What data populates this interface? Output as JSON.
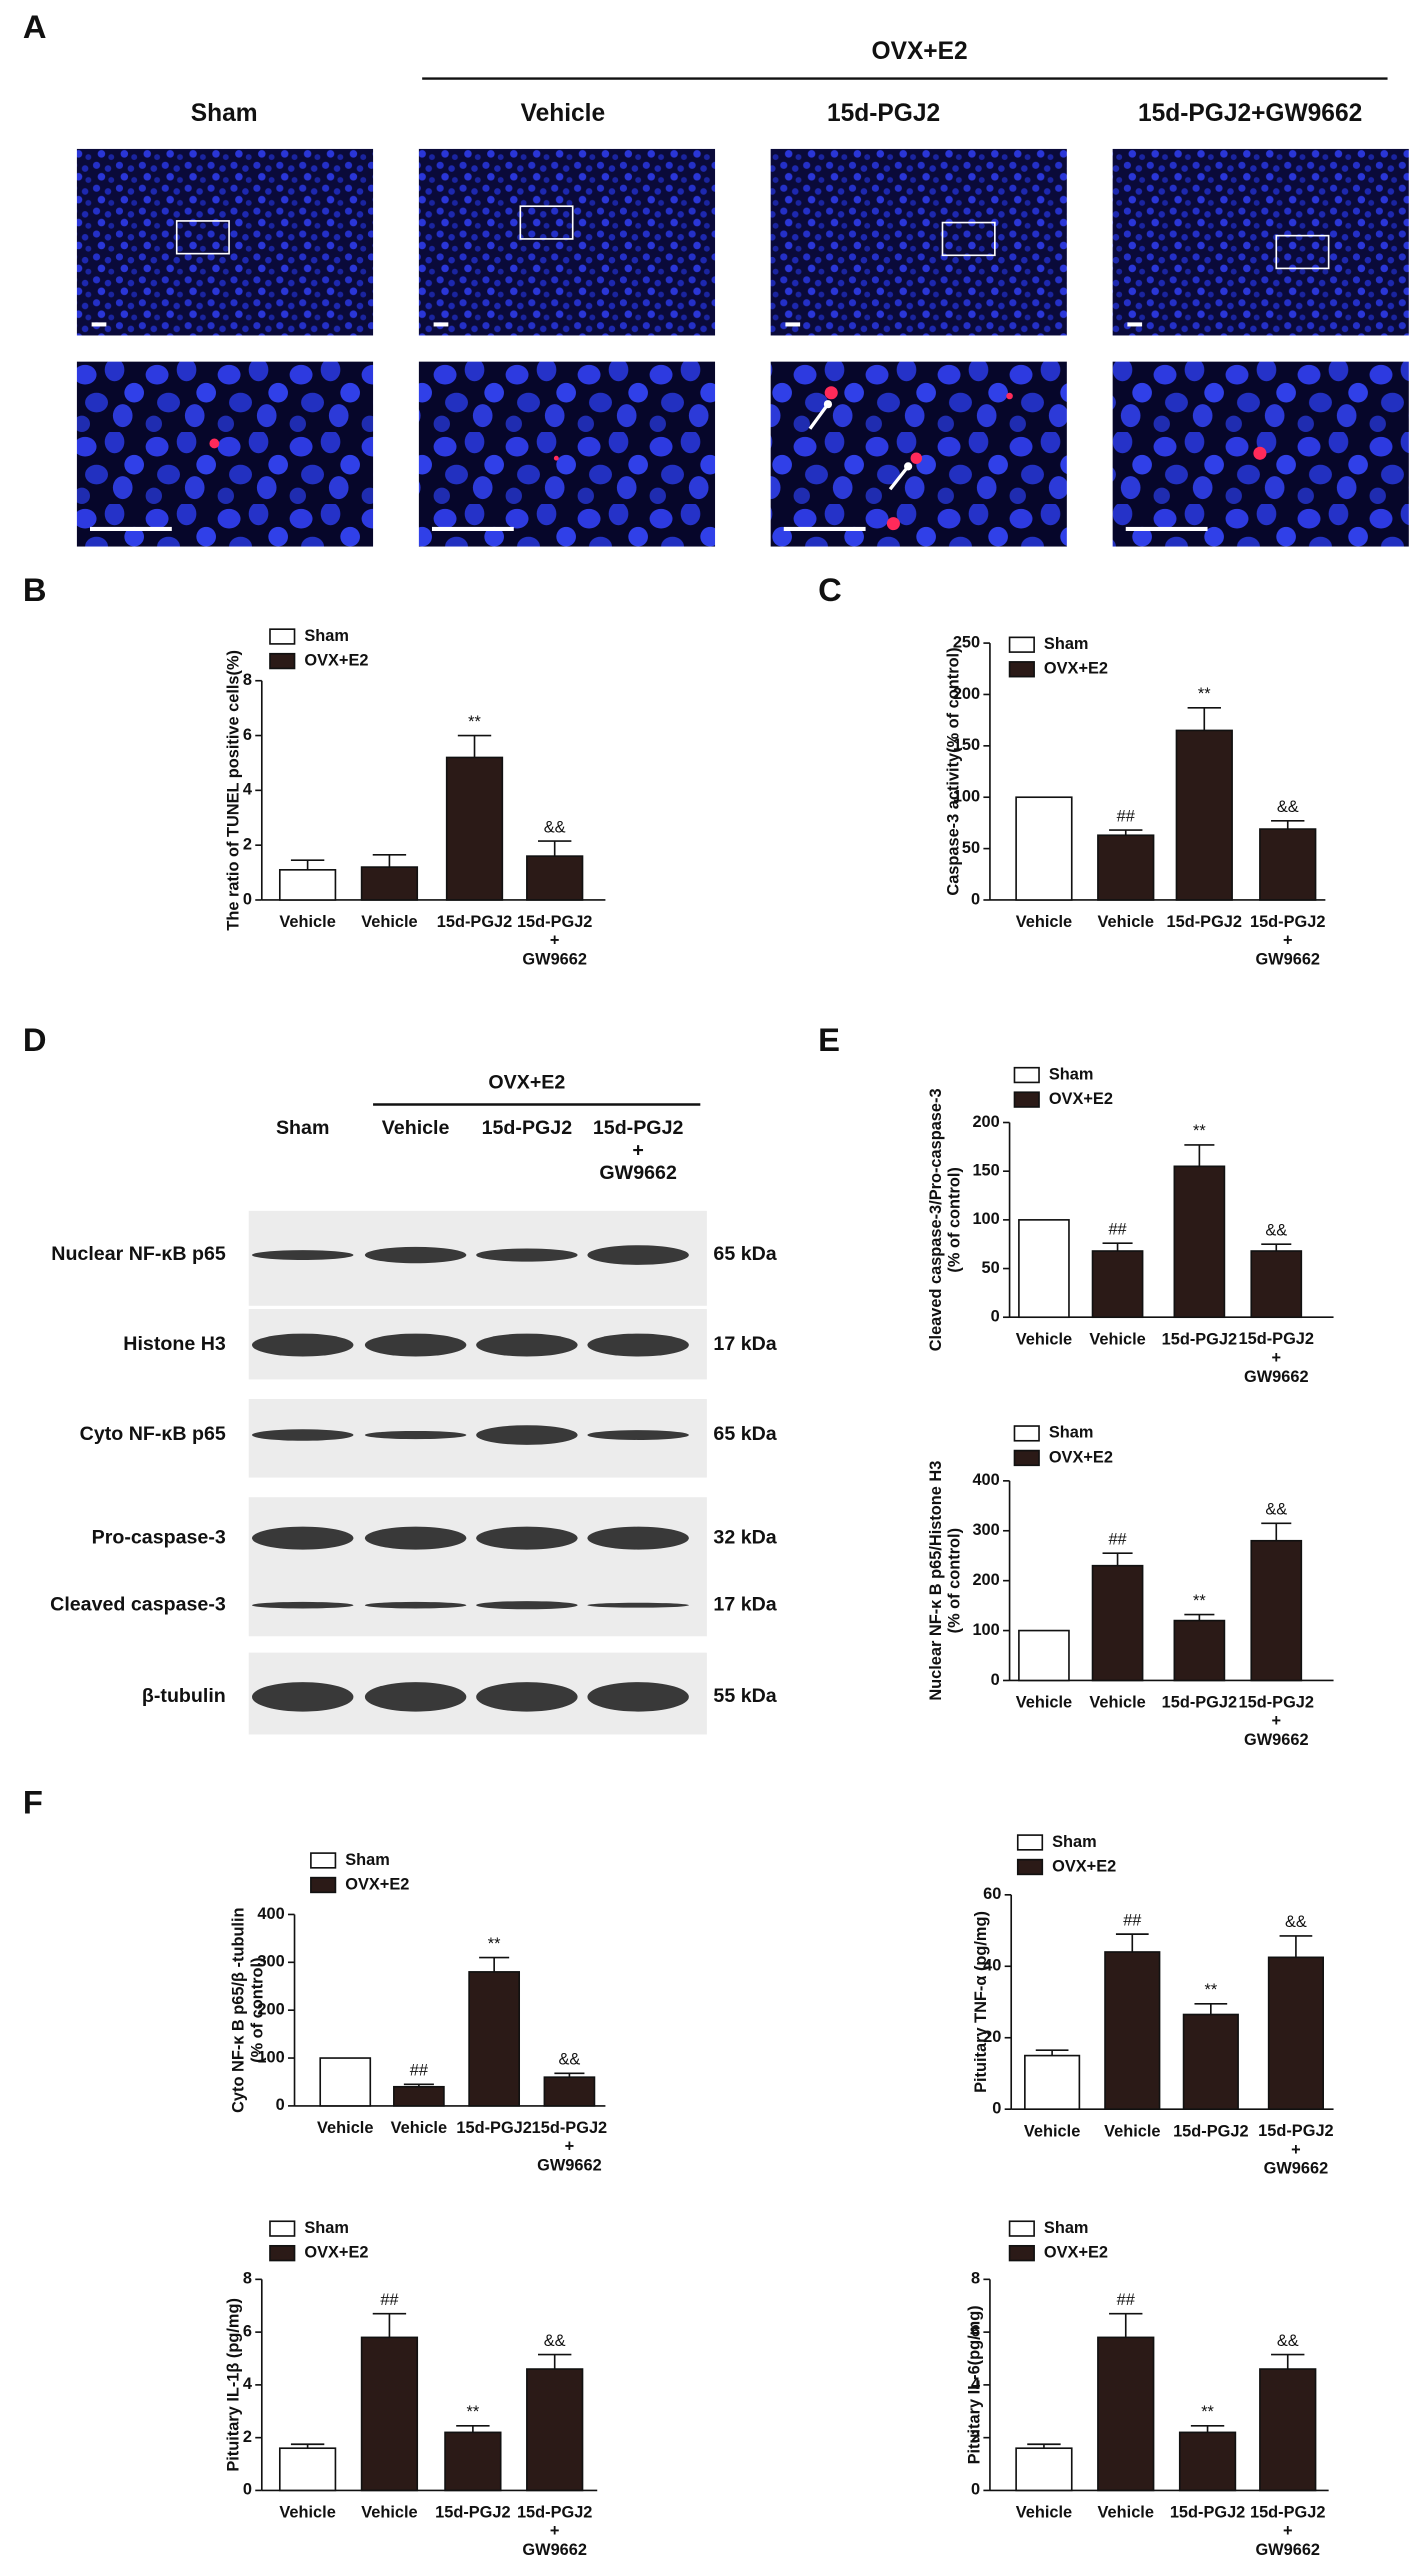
{
  "panels": [
    "A",
    "B",
    "C",
    "D",
    "E",
    "F"
  ],
  "microscopy": {
    "group_label": "OVX+E2",
    "columns": [
      "Sham",
      "Vehicle",
      "15d-PGJ2",
      "15d-PGJ2+GW9662"
    ]
  },
  "blot": {
    "group_label": "OVX+E2",
    "lanes": [
      "Sham",
      "Vehicle",
      "15d-PGJ2",
      "15d-PGJ2\n+\nGW9662"
    ],
    "rows": [
      {
        "label": "Nuclear NF-κB p65",
        "size": "65 kDa"
      },
      {
        "label": "Histone H3",
        "size": "17 kDa"
      },
      {
        "label": "Cyto NF-κB p65",
        "size": "65 kDa"
      },
      {
        "label": "Pro-caspase-3",
        "size": "32 kDa"
      },
      {
        "label": "Cleaved caspase-3",
        "size": "17 kDa"
      },
      {
        "label": "β-tubulin",
        "size": "55 kDa"
      }
    ]
  },
  "chart_data": [
    {
      "type": "bar",
      "ylabel": "The ratio of TUNEL positive cells(%)",
      "legend": [
        {
          "name": "Sham",
          "color": "#ffffff"
        },
        {
          "name": "OVX+E2",
          "color": "#2b1a17"
        }
      ],
      "categories": [
        "Vehicle",
        "Vehicle",
        "15d-PGJ2",
        "15d-PGJ2\n+\nGW9662"
      ],
      "values": [
        1.1,
        1.2,
        5.2,
        1.6
      ],
      "errors": [
        0.35,
        0.45,
        0.8,
        0.55
      ],
      "colors": [
        "#ffffff",
        "#2b1a17",
        "#2b1a17",
        "#2b1a17"
      ],
      "annotations": [
        null,
        null,
        "**",
        "&&"
      ],
      "ylim": [
        0,
        8
      ],
      "yticks": [
        0,
        2,
        4,
        6,
        8
      ]
    },
    {
      "type": "bar",
      "ylabel": "Caspase-3 activity(% of control)",
      "legend": [
        {
          "name": "Sham",
          "color": "#ffffff"
        },
        {
          "name": "OVX+E2",
          "color": "#2b1a17"
        }
      ],
      "categories": [
        "Vehicle",
        "Vehicle",
        "15d-PGJ2",
        "15d-PGJ2\n+\nGW9662"
      ],
      "values": [
        100,
        63,
        165,
        69
      ],
      "errors": [
        0,
        5,
        22,
        8
      ],
      "colors": [
        "#ffffff",
        "#2b1a17",
        "#2b1a17",
        "#2b1a17"
      ],
      "annotations": [
        null,
        "##",
        "**",
        "&&"
      ],
      "ylim": [
        0,
        250
      ],
      "yticks": [
        0,
        50,
        100,
        150,
        200,
        250
      ]
    },
    {
      "type": "bar",
      "ylabel": "Cleaved caspase-3/Pro-caspase-3\n(% of control)",
      "legend": [
        {
          "name": "Sham",
          "color": "#ffffff"
        },
        {
          "name": "OVX+E2",
          "color": "#2b1a17"
        }
      ],
      "categories": [
        "Vehicle",
        "Vehicle",
        "15d-PGJ2",
        "15d-PGJ2\n+\nGW9662"
      ],
      "values": [
        100,
        68,
        155,
        68
      ],
      "errors": [
        0,
        8,
        22,
        7
      ],
      "colors": [
        "#ffffff",
        "#2b1a17",
        "#2b1a17",
        "#2b1a17"
      ],
      "annotations": [
        null,
        "##",
        "**",
        "&&"
      ],
      "ylim": [
        0,
        200
      ],
      "yticks": [
        0,
        50,
        100,
        150,
        200
      ]
    },
    {
      "type": "bar",
      "ylabel": "Nuclear NF-κ B p65/Histone H3\n(% of control)",
      "legend": [
        {
          "name": "Sham",
          "color": "#ffffff"
        },
        {
          "name": "OVX+E2",
          "color": "#2b1a17"
        }
      ],
      "categories": [
        "Vehicle",
        "Vehicle",
        "15d-PGJ2",
        "15d-PGJ2\n+\nGW9662"
      ],
      "values": [
        100,
        230,
        120,
        280
      ],
      "errors": [
        0,
        25,
        12,
        35
      ],
      "colors": [
        "#ffffff",
        "#2b1a17",
        "#2b1a17",
        "#2b1a17"
      ],
      "annotations": [
        null,
        "##",
        "**",
        "&&"
      ],
      "ylim": [
        0,
        400
      ],
      "yticks": [
        0,
        100,
        200,
        300,
        400
      ]
    },
    {
      "type": "bar",
      "ylabel": "Cyto NF-κ B p65/β -tubulin\n(% of control)",
      "legend": [
        {
          "name": "Sham",
          "color": "#ffffff"
        },
        {
          "name": "OVX+E2",
          "color": "#2b1a17"
        }
      ],
      "categories": [
        "Vehicle",
        "Vehicle",
        "15d-PGJ2",
        "15d-PGJ2\n+\nGW9662"
      ],
      "values": [
        100,
        40,
        280,
        60
      ],
      "errors": [
        0,
        5,
        30,
        8
      ],
      "colors": [
        "#ffffff",
        "#2b1a17",
        "#2b1a17",
        "#2b1a17"
      ],
      "annotations": [
        null,
        "##",
        "**",
        "&&"
      ],
      "ylim": [
        0,
        400
      ],
      "yticks": [
        0,
        100,
        200,
        300,
        400
      ]
    },
    {
      "type": "bar",
      "ylabel": "Pituitary TNF-α (pg/mg)",
      "legend": [
        {
          "name": "Sham",
          "color": "#ffffff"
        },
        {
          "name": "OVX+E2",
          "color": "#2b1a17"
        }
      ],
      "categories": [
        "Vehicle",
        "Vehicle",
        "15d-PGJ2",
        "15d-PGJ2\n+\nGW9662"
      ],
      "values": [
        15,
        44,
        26.5,
        42.5
      ],
      "errors": [
        1.5,
        5,
        3,
        6
      ],
      "colors": [
        "#ffffff",
        "#2b1a17",
        "#2b1a17",
        "#2b1a17"
      ],
      "annotations": [
        null,
        "##",
        "**",
        "&&"
      ],
      "ylim": [
        0,
        60
      ],
      "yticks": [
        0,
        20,
        40,
        60
      ]
    },
    {
      "type": "bar",
      "ylabel": "Pituitary IL-1β (pg/mg)",
      "legend": [
        {
          "name": "Sham",
          "color": "#ffffff"
        },
        {
          "name": "OVX+E2",
          "color": "#2b1a17"
        }
      ],
      "categories": [
        "Vehicle",
        "Vehicle",
        "15d-PGJ2",
        "15d-PGJ2\n+\nGW9662"
      ],
      "values": [
        1.6,
        5.8,
        2.2,
        4.6
      ],
      "errors": [
        0.15,
        0.9,
        0.25,
        0.55
      ],
      "colors": [
        "#ffffff",
        "#2b1a17",
        "#2b1a17",
        "#2b1a17"
      ],
      "annotations": [
        null,
        "##",
        "**",
        "&&"
      ],
      "ylim": [
        0,
        8
      ],
      "yticks": [
        0,
        2,
        4,
        6,
        8
      ]
    },
    {
      "type": "bar",
      "ylabel": "Pituitary IL-6(pg/mg)",
      "legend": [
        {
          "name": "Sham",
          "color": "#ffffff"
        },
        {
          "name": "OVX+E2",
          "color": "#2b1a17"
        }
      ],
      "categories": [
        "Vehicle",
        "Vehicle",
        "15d-PGJ2",
        "15d-PGJ2\n+\nGW9662"
      ],
      "values": [
        1.6,
        5.8,
        2.2,
        4.6
      ],
      "errors": [
        0.15,
        0.9,
        0.25,
        0.55
      ],
      "colors": [
        "#ffffff",
        "#2b1a17",
        "#2b1a17",
        "#2b1a17"
      ],
      "annotations": [
        null,
        "##",
        "**",
        "&&"
      ],
      "ylim": [
        0,
        8
      ],
      "yticks": [
        0,
        2,
        4,
        6,
        8
      ]
    }
  ]
}
